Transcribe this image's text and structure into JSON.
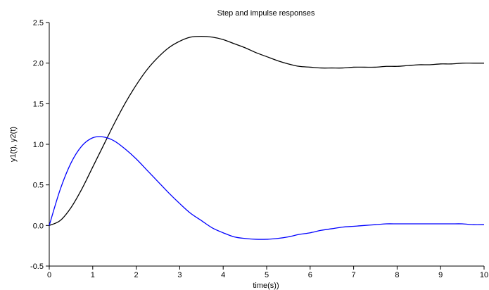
{
  "chart_data": {
    "type": "line",
    "title": "Step and impulse responses",
    "xlabel": "time(s))",
    "ylabel": "y1(t), y2(t)",
    "xlim": [
      0,
      10
    ],
    "ylim": [
      -0.5,
      2.5
    ],
    "x_ticks": [
      "0",
      "1",
      "2",
      "3",
      "4",
      "5",
      "6",
      "7",
      "8",
      "9",
      "10"
    ],
    "y_ticks": [
      "-0.5",
      "0.0",
      "0.5",
      "1.0",
      "1.5",
      "2.0",
      "2.5"
    ],
    "grid": false,
    "legend": "none",
    "series": [
      {
        "color": "#000000",
        "x": [
          0,
          0.25,
          0.5,
          0.75,
          1.0,
          1.25,
          1.5,
          1.75,
          2.0,
          2.25,
          2.5,
          2.75,
          3.0,
          3.25,
          3.5,
          3.75,
          4.0,
          4.25,
          4.5,
          4.75,
          5.0,
          5.25,
          5.5,
          5.75,
          6.0,
          6.25,
          6.5,
          6.75,
          7.0,
          7.25,
          7.5,
          7.75,
          8.0,
          8.25,
          8.5,
          8.75,
          9.0,
          9.25,
          9.5,
          9.75,
          10.0
        ],
        "y": [
          0,
          0.06,
          0.22,
          0.45,
          0.72,
          0.99,
          1.26,
          1.51,
          1.73,
          1.92,
          2.07,
          2.19,
          2.27,
          2.32,
          2.33,
          2.32,
          2.29,
          2.24,
          2.19,
          2.13,
          2.08,
          2.03,
          1.99,
          1.96,
          1.95,
          1.94,
          1.94,
          1.94,
          1.95,
          1.95,
          1.95,
          1.96,
          1.96,
          1.97,
          1.98,
          1.98,
          1.99,
          1.99,
          2.0,
          2.0,
          2.0
        ]
      },
      {
        "color": "#0000ff",
        "x": [
          0,
          0.25,
          0.5,
          0.75,
          1.0,
          1.25,
          1.5,
          1.75,
          2.0,
          2.25,
          2.5,
          2.75,
          3.0,
          3.25,
          3.5,
          3.75,
          4.0,
          4.25,
          4.5,
          4.75,
          5.0,
          5.25,
          5.5,
          5.75,
          6.0,
          6.25,
          6.5,
          6.75,
          7.0,
          7.25,
          7.5,
          7.75,
          8.0,
          8.25,
          8.5,
          8.75,
          9.0,
          9.25,
          9.5,
          9.75,
          10.0
        ],
        "y": [
          0,
          0.44,
          0.77,
          0.98,
          1.08,
          1.09,
          1.04,
          0.94,
          0.82,
          0.68,
          0.54,
          0.4,
          0.27,
          0.15,
          0.06,
          -0.03,
          -0.09,
          -0.14,
          -0.16,
          -0.17,
          -0.17,
          -0.16,
          -0.14,
          -0.11,
          -0.09,
          -0.06,
          -0.04,
          -0.02,
          -0.01,
          0.0,
          0.01,
          0.02,
          0.02,
          0.02,
          0.02,
          0.02,
          0.02,
          0.02,
          0.02,
          0.01,
          0.01
        ]
      }
    ]
  }
}
